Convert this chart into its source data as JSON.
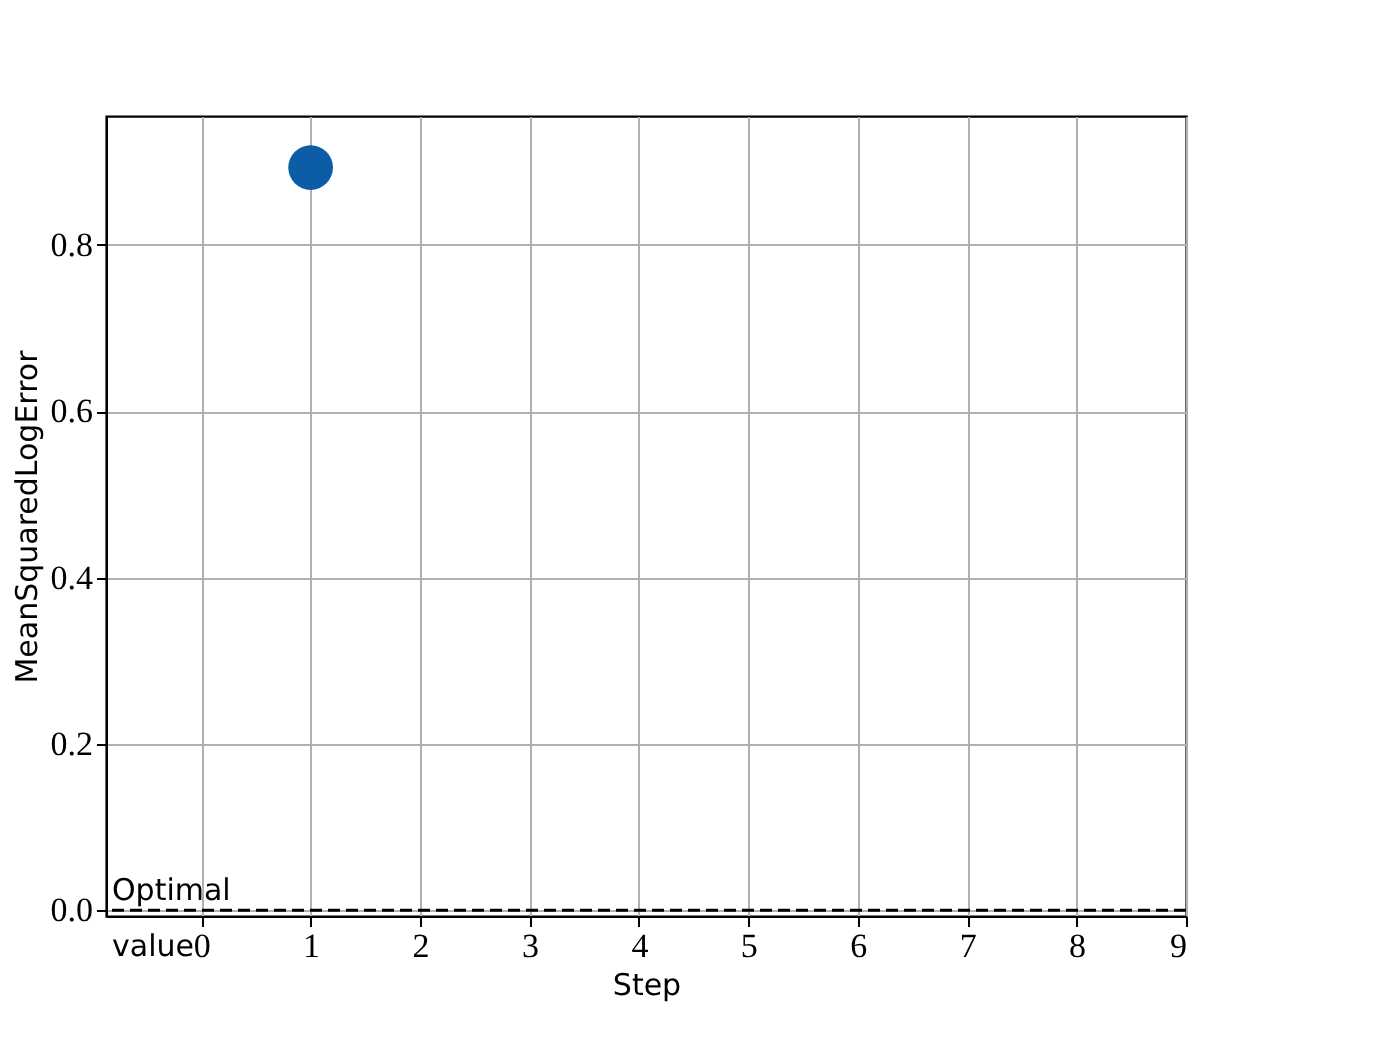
{
  "chart_data": {
    "type": "scatter",
    "xlabel": "Step",
    "ylabel": "MeanSquaredLogError",
    "x": [
      1
    ],
    "values": [
      0.893
    ],
    "color": "#0c5da5",
    "marker": "circle",
    "xlim": [
      -0.87,
      9
    ],
    "xticks": [
      0,
      1,
      2,
      3,
      4,
      5,
      6,
      7,
      8,
      9
    ],
    "ylim": [
      -0.007,
      0.955
    ],
    "yticks": [
      {
        "value": 0,
        "label": "0.0"
      },
      0.2,
      0.4,
      0.6,
      0.8
    ],
    "grid": true,
    "ref_lines": [
      {
        "axis": "y",
        "value": 0,
        "label": "Optimal value",
        "color": "#000000",
        "line_style": "dashed"
      }
    ]
  }
}
